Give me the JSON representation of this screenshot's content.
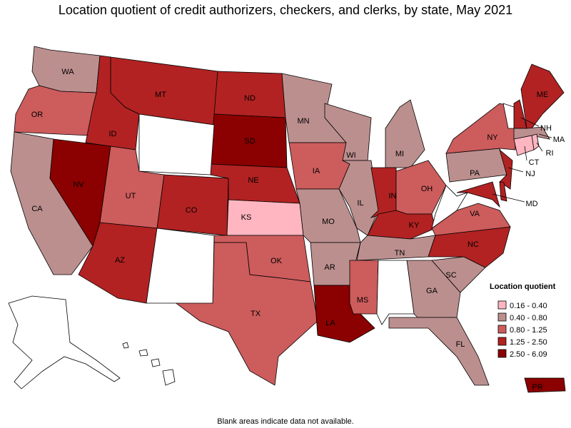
{
  "title": "Location quotient of credit authorizers, checkers, and clerks, by state, May 2021",
  "footnote": "Blank areas indicate data not available.",
  "legend": {
    "title": "Location quotient",
    "items": [
      {
        "label": "0.16 - 0.40",
        "color": "#ffb6c1"
      },
      {
        "label": "0.40 - 0.80",
        "color": "#bc8f8f"
      },
      {
        "label": "0.80 - 1.25",
        "color": "#cd5c5c"
      },
      {
        "label": "1.25 - 2.50",
        "color": "#b22222"
      },
      {
        "label": "2.50 - 6.09",
        "color": "#8b0000"
      }
    ]
  },
  "states": [
    {
      "label": "WA",
      "color": "#bc8f8f"
    },
    {
      "label": "OR",
      "color": "#cd5c5c"
    },
    {
      "label": "CA",
      "color": "#bc8f8f"
    },
    {
      "label": "NV",
      "color": "#8b0000"
    },
    {
      "label": "ID",
      "color": "#b22222"
    },
    {
      "label": "MT",
      "color": "#b22222"
    },
    {
      "label": "UT",
      "color": "#cd5c5c"
    },
    {
      "label": "CO",
      "color": "#b22222"
    },
    {
      "label": "AZ",
      "color": "#b22222"
    },
    {
      "label": "ND",
      "color": "#b22222"
    },
    {
      "label": "SD",
      "color": "#8b0000"
    },
    {
      "label": "NE",
      "color": "#b22222"
    },
    {
      "label": "KS",
      "color": "#ffb6c1"
    },
    {
      "label": "OK",
      "color": "#cd5c5c"
    },
    {
      "label": "TX",
      "color": "#cd5c5c"
    },
    {
      "label": "MN",
      "color": "#bc8f8f"
    },
    {
      "label": "IA",
      "color": "#cd5c5c"
    },
    {
      "label": "MO",
      "color": "#bc8f8f"
    },
    {
      "label": "AR",
      "color": "#bc8f8f"
    },
    {
      "label": "LA",
      "color": "#8b0000"
    },
    {
      "label": "WI",
      "color": "#bc8f8f"
    },
    {
      "label": "IL",
      "color": "#bc8f8f"
    },
    {
      "label": "MI",
      "color": "#bc8f8f"
    },
    {
      "label": "IN",
      "color": "#b22222"
    },
    {
      "label": "OH",
      "color": "#cd5c5c"
    },
    {
      "label": "KY",
      "color": "#b22222"
    },
    {
      "label": "TN",
      "color": "#bc8f8f"
    },
    {
      "label": "MS",
      "color": "#cd5c5c"
    },
    {
      "label": "GA",
      "color": "#bc8f8f"
    },
    {
      "label": "FL",
      "color": "#bc8f8f"
    },
    {
      "label": "SC",
      "color": "#bc8f8f"
    },
    {
      "label": "NC",
      "color": "#b22222"
    },
    {
      "label": "VA",
      "color": "#cd5c5c"
    },
    {
      "label": "PA",
      "color": "#bc8f8f"
    },
    {
      "label": "NY",
      "color": "#cd5c5c"
    },
    {
      "label": "ME",
      "color": "#b22222"
    },
    {
      "label": "PR",
      "color": "#8b0000"
    },
    {
      "label": "NH",
      "color": "#b22222"
    },
    {
      "label": "MA",
      "color": "#bc8f8f"
    },
    {
      "label": "RI",
      "color": "#ffb6c1"
    },
    {
      "label": "CT",
      "color": "#ffb6c1"
    },
    {
      "label": "NJ",
      "color": "#b22222"
    },
    {
      "label": "MD",
      "color": "#b22222"
    },
    {
      "color": "#ffffff"
    },
    {
      "color": "#ffffff"
    },
    {
      "color": "#ffffff"
    },
    {
      "color": "#ffffff"
    },
    {
      "color": "#ffffff"
    },
    {
      "color": "#b22222"
    }
  ]
}
